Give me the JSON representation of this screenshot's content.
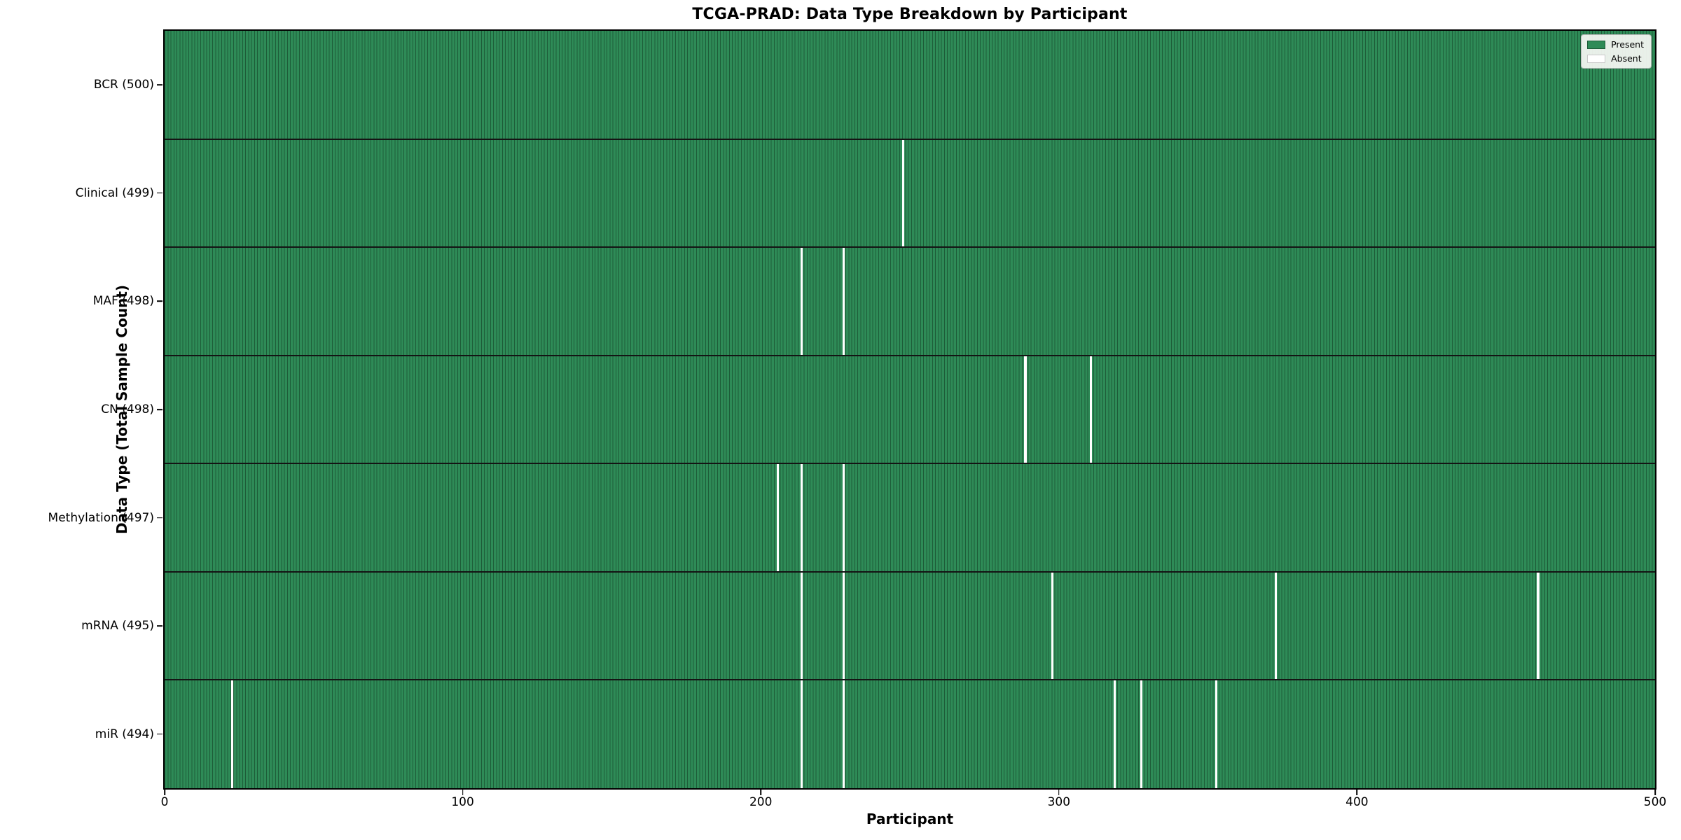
{
  "figure": {
    "title": "TCGA-PRAD: Data Type Breakdown by Participant",
    "xlabel": "Participant",
    "ylabel": "Data Type (Total Sample Count)"
  },
  "colors": {
    "present": "#2e8b57",
    "cell_edge": "#1d5c38",
    "absent": "#ffffff",
    "row_divider": "#141414",
    "plot_border": "#000000",
    "legend_background": "#f8f8f5"
  },
  "chart_data": {
    "type": "heatmap",
    "title": "TCGA-PRAD: Data Type Breakdown by Participant",
    "xlabel": "Participant",
    "ylabel": "Data Type (Total Sample Count)",
    "x_range": [
      0,
      500
    ],
    "x_ticks": [
      0,
      100,
      200,
      300,
      400,
      500
    ],
    "n_participants": 500,
    "grid": false,
    "legend_position": "upper right",
    "legend": [
      {
        "label": "Present",
        "color": "#2e8b57"
      },
      {
        "label": "Absent",
        "color": "#ffffff"
      }
    ],
    "rows": [
      {
        "label": "BCR (500)",
        "data_type": "BCR",
        "total": 500,
        "absent_participants": []
      },
      {
        "label": "Clinical (499)",
        "data_type": "Clinical",
        "total": 499,
        "absent_participants": [
          247
        ]
      },
      {
        "label": "MAF (498)",
        "data_type": "MAF",
        "total": 498,
        "absent_participants": [
          213,
          227
        ]
      },
      {
        "label": "CN (498)",
        "data_type": "CN",
        "total": 498,
        "absent_participants": [
          288,
          310
        ]
      },
      {
        "label": "Methylation (497)",
        "data_type": "Methylation",
        "total": 497,
        "absent_participants": [
          205,
          213,
          227
        ]
      },
      {
        "label": "mRNA (495)",
        "data_type": "mRNA",
        "total": 495,
        "absent_participants": [
          213,
          227,
          297,
          372,
          460
        ]
      },
      {
        "label": "miR (494)",
        "data_type": "miR",
        "total": 494,
        "absent_participants": [
          22,
          213,
          227,
          318,
          327,
          352
        ]
      }
    ]
  }
}
